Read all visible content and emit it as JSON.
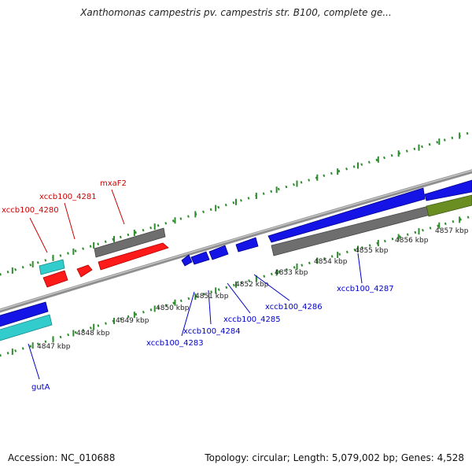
{
  "title": "Xanthomonas campestris pv. campestris str. B100, complete ge...",
  "footer": {
    "accession": "Accession: NC_010688",
    "summary": "Topology: circular; Length: 5,079,002 bp; Genes: 4,528"
  },
  "colors": {
    "background": "#ffffff",
    "backbone": "#9a9a9a",
    "tick": "#2e8b2e",
    "forward_gene_label": "#cc0000",
    "reverse_gene_label": "#0000cc",
    "feature_red": "#ff1a1a",
    "feature_gray": "#6e6e6e",
    "feature_blue": "#1414e6",
    "feature_cyan": "#33cccc",
    "feature_olive": "#6b8e23"
  },
  "ticks": [
    {
      "label": "4847 kbp"
    },
    {
      "label": "4848 kbp"
    },
    {
      "label": "4849 kbp"
    },
    {
      "label": "4850 kbp"
    },
    {
      "label": "4851 kbp"
    },
    {
      "label": "4852 kbp"
    },
    {
      "label": "4853 kbp"
    },
    {
      "label": "4854 kbp"
    },
    {
      "label": "4855 kbp"
    },
    {
      "label": "4856 kbp"
    },
    {
      "label": "4857 kbp"
    }
  ],
  "gene_labels": {
    "xccb100_4280": "xccb100_4280",
    "xccb100_4281": "xccb100_4281",
    "mxaF2": "mxaF2",
    "gutA": "gutA",
    "xccb100_4283": "xccb100_4283",
    "xccb100_4284": "xccb100_4284",
    "xccb100_4285": "xccb100_4285",
    "xccb100_4286": "xccb100_4286",
    "xccb100_4287": "xccb100_4287"
  }
}
